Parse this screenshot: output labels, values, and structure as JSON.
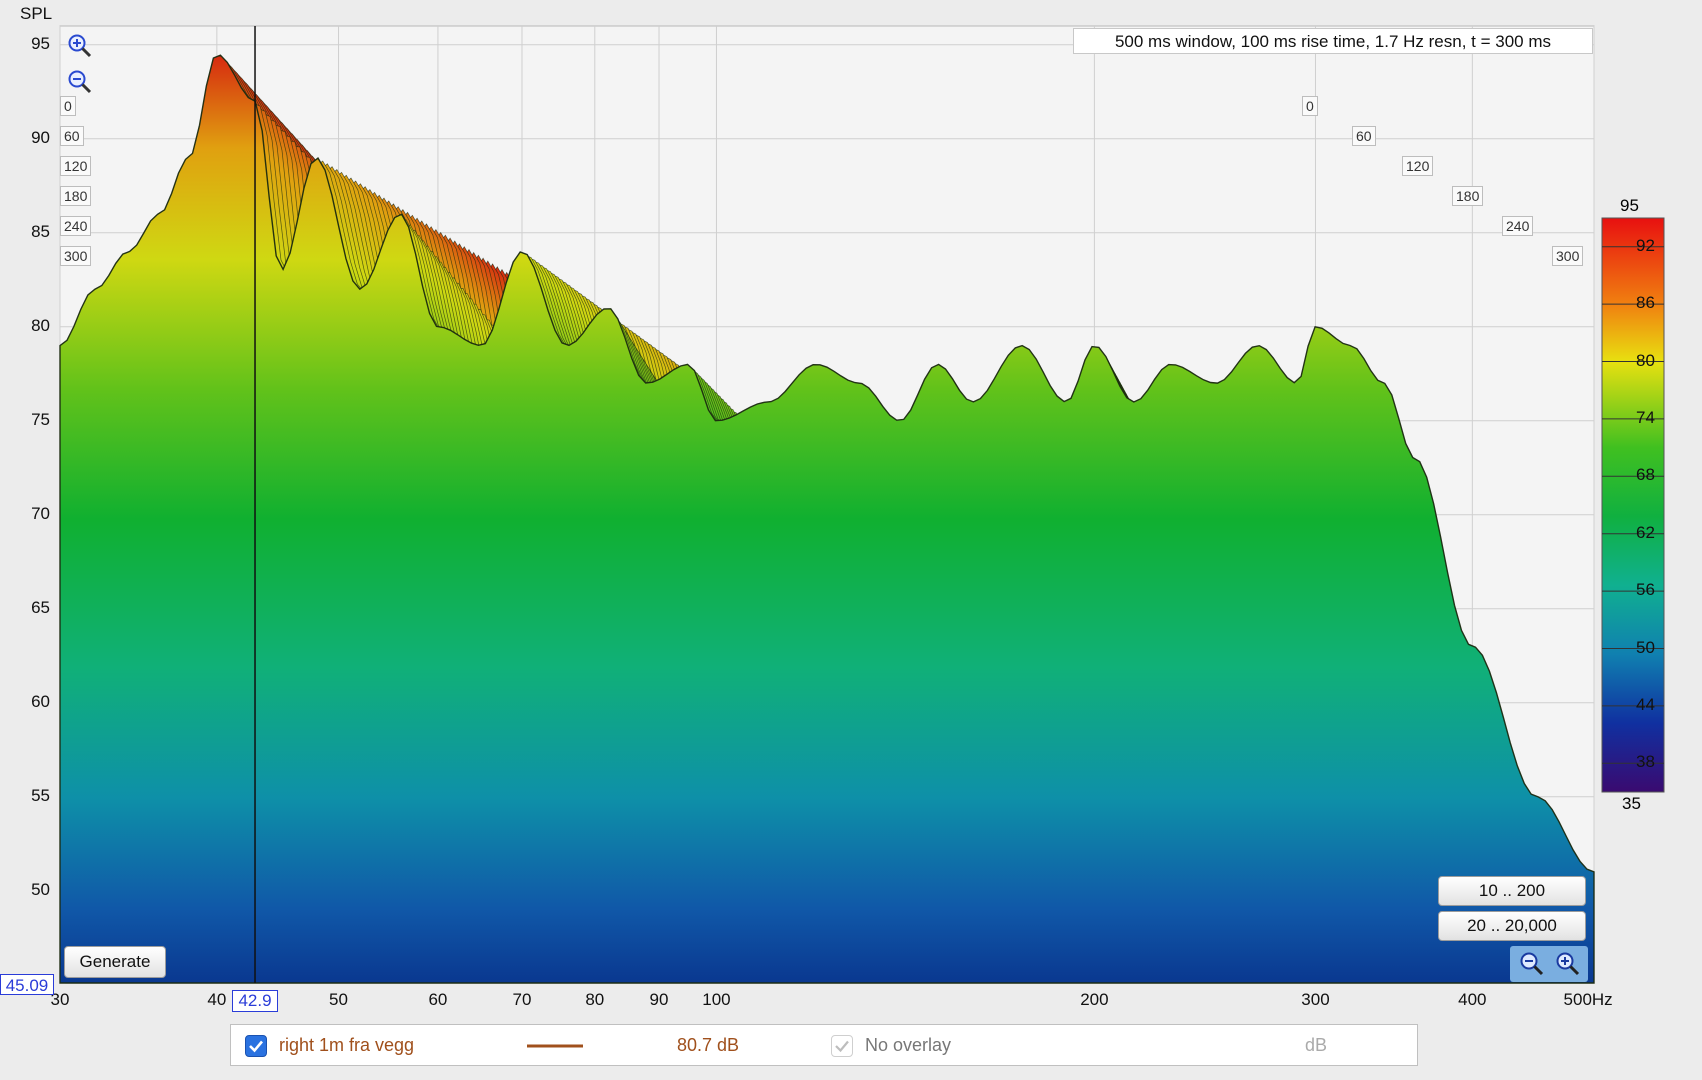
{
  "chart_data": {
    "type": "waterfall",
    "title": "",
    "subtitle": "500 ms window, 100 ms rise time,  1.7 Hz resn, t = 300 ms",
    "ylabel": "SPL",
    "xunit": "Hz",
    "ylim": [
      45.09,
      96
    ],
    "xlim": [
      30,
      500
    ],
    "x_scale": "log",
    "y_ticks": [
      "95",
      "90",
      "85",
      "80",
      "75",
      "70",
      "65",
      "60",
      "55",
      "50"
    ],
    "x_ticks": [
      "30",
      "40",
      "50",
      "60",
      "70",
      "80",
      "90",
      "100",
      "200",
      "300",
      "400",
      "500Hz"
    ],
    "time_labels": [
      "0",
      "60",
      "120",
      "180",
      "240",
      "300"
    ],
    "time_values_ms": [
      0,
      60,
      120,
      180,
      240,
      300
    ],
    "colorbar": {
      "min": "35",
      "max": "95",
      "ticks": [
        "92",
        "86",
        "80",
        "74",
        "68",
        "62",
        "56",
        "50",
        "44",
        "38"
      ]
    },
    "front_slice": {
      "x": [
        30,
        32,
        34,
        36,
        38,
        40,
        42.9,
        45,
        48,
        52,
        56,
        60,
        65,
        70,
        76,
        82,
        88,
        95,
        100,
        110,
        120,
        130,
        140,
        150,
        160,
        175,
        190,
        200,
        215,
        230,
        250,
        270,
        290,
        300,
        320,
        340,
        360,
        400,
        450,
        500
      ],
      "y": [
        79,
        82,
        84,
        86,
        89,
        94.5,
        92,
        83,
        89,
        82,
        86,
        80,
        79,
        84,
        79,
        81,
        77,
        78,
        75,
        76,
        78,
        77,
        75,
        78,
        76,
        79,
        76,
        79,
        76,
        78,
        77,
        79,
        77,
        80,
        79,
        77,
        73,
        63,
        55,
        51
      ]
    },
    "cursor": {
      "x": "42.9",
      "y": "45.09"
    }
  },
  "ui": {
    "generate_label": "Generate",
    "range_low_label": "10 .. 200",
    "range_full_label": "20 .. 20,000",
    "zoom_in_icon": "zoom-in-icon",
    "zoom_out_icon": "zoom-out-icon"
  },
  "legend": {
    "series_name": "right 1m fra vegg",
    "series_checked": true,
    "series_color": "#a0501c",
    "value": "80.7 dB",
    "overlay_label": "No overlay",
    "unit_label": "dB"
  },
  "colors": {
    "accent": "#2a3cd8",
    "series": "#a0501c"
  }
}
